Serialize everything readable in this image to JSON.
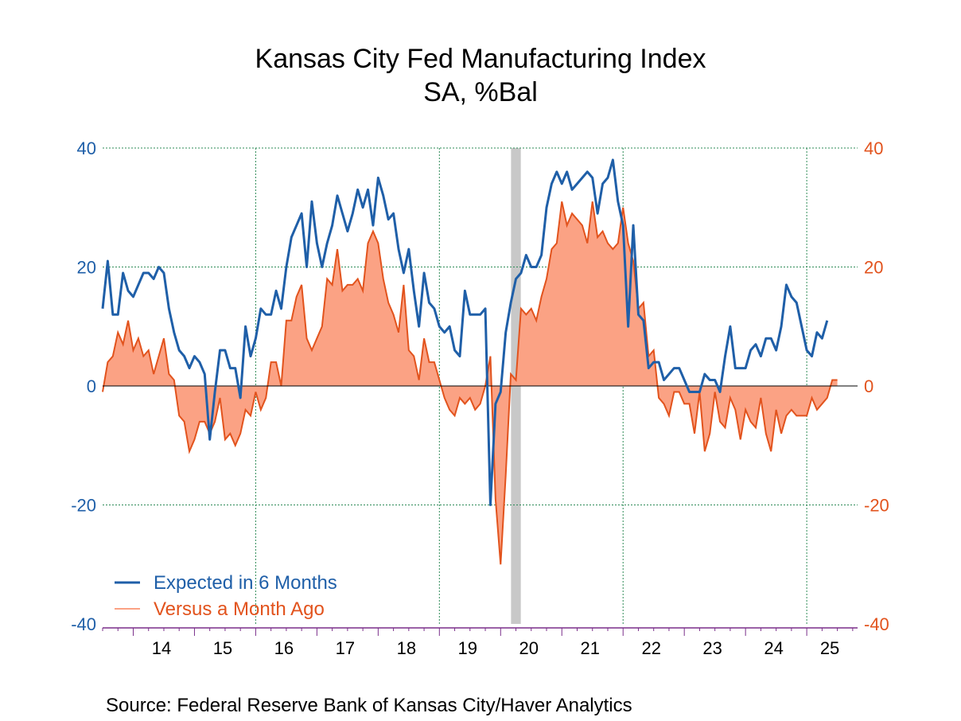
{
  "chart_data": {
    "type": "line",
    "title": "Kansas City Fed Manufacturing Index",
    "subtitle": "SA, %Bal",
    "xlabel": "",
    "ylabel": "",
    "ylim": [
      -40,
      40
    ],
    "y_ticks_left": [
      "40",
      "20",
      "0",
      "-20",
      "-40"
    ],
    "y_ticks_right": [
      "40",
      "20",
      "0",
      "-20",
      "-40"
    ],
    "x_ticks": [
      "14",
      "15",
      "16",
      "17",
      "18",
      "19",
      "20",
      "21",
      "22",
      "23",
      "24",
      "25"
    ],
    "x_start_year": 2013.5,
    "x_end_year": 2025.83,
    "grid": true,
    "legend_position": "bottom-left",
    "recession": [
      2020.17,
      2020.33
    ],
    "colors": {
      "series1": "#1f5fa8",
      "series2_line": "#e2531d",
      "series2_fill": "#fba284",
      "recession": "#c8c8c8",
      "grid": "#2e8b57"
    },
    "series": [
      {
        "name": "Expected in 6 Months",
        "style": "line",
        "values": [
          13,
          21,
          12,
          12,
          19,
          16,
          15,
          17,
          19,
          19,
          18,
          20,
          19,
          13,
          9,
          6,
          5,
          3,
          5,
          4,
          2,
          -9,
          -1,
          6,
          6,
          3,
          3,
          -2,
          10,
          5,
          8,
          13,
          12,
          12,
          16,
          13,
          20,
          25,
          27,
          29,
          20,
          31,
          24,
          20,
          24,
          27,
          32,
          29,
          26,
          29,
          33,
          30,
          33,
          27,
          35,
          32,
          28,
          29,
          23,
          19,
          23,
          16,
          10,
          19,
          14,
          13,
          10,
          9,
          10,
          6,
          5,
          16,
          12,
          12,
          12,
          13,
          -20,
          -3,
          -1,
          9,
          14,
          18,
          19,
          22,
          20,
          20,
          22,
          30,
          34,
          36,
          34,
          36,
          33,
          34,
          35,
          36,
          35,
          29,
          34,
          35,
          38,
          31,
          27,
          10,
          27,
          12,
          11,
          3,
          4,
          4,
          1,
          2,
          3,
          3,
          1,
          -1,
          -1,
          -1,
          2,
          1,
          1,
          -1,
          5,
          10,
          3,
          3,
          3,
          6,
          7,
          5,
          8,
          8,
          6,
          10,
          17,
          15,
          14,
          10,
          6,
          5,
          9,
          8,
          11
        ]
      },
      {
        "name": "Versus a Month Ago",
        "style": "area",
        "values": [
          -1,
          4,
          5,
          9,
          7,
          11,
          6,
          8,
          5,
          6,
          2,
          5,
          8,
          2,
          1,
          -5,
          -6,
          -11,
          -9,
          -6,
          -6,
          -8,
          -6,
          -2,
          -9,
          -8,
          -10,
          -8,
          -4,
          -5,
          -1,
          -4,
          -2,
          4,
          4,
          0,
          11,
          11,
          15,
          17,
          8,
          6,
          8,
          10,
          18,
          17,
          23,
          16,
          17,
          17,
          18,
          16,
          24,
          26,
          24,
          18,
          14,
          12,
          9,
          17,
          6,
          5,
          1,
          8,
          4,
          4,
          1,
          -2,
          -4,
          -5,
          -2,
          -3,
          -2,
          -4,
          -3,
          0,
          5,
          -19,
          -30,
          -15,
          2,
          1,
          13,
          12,
          13,
          11,
          15,
          18,
          23,
          24,
          31,
          27,
          29,
          28,
          27,
          24,
          31,
          25,
          26,
          24,
          23,
          24,
          30,
          24,
          21,
          13,
          14,
          5,
          6,
          -2,
          -3,
          -5,
          -1,
          -1,
          -3,
          -3,
          -8,
          -1,
          -11,
          -8,
          -1,
          -6,
          -7,
          -2,
          -4,
          -9,
          -4,
          -6,
          -7,
          -2,
          -8,
          -11,
          -4,
          -8,
          -5,
          -4,
          -5,
          -5,
          -5,
          -2,
          -4,
          -3,
          -2,
          1,
          1
        ]
      }
    ],
    "source": "Source:  Federal Reserve Bank of Kansas City/Haver Analytics"
  }
}
